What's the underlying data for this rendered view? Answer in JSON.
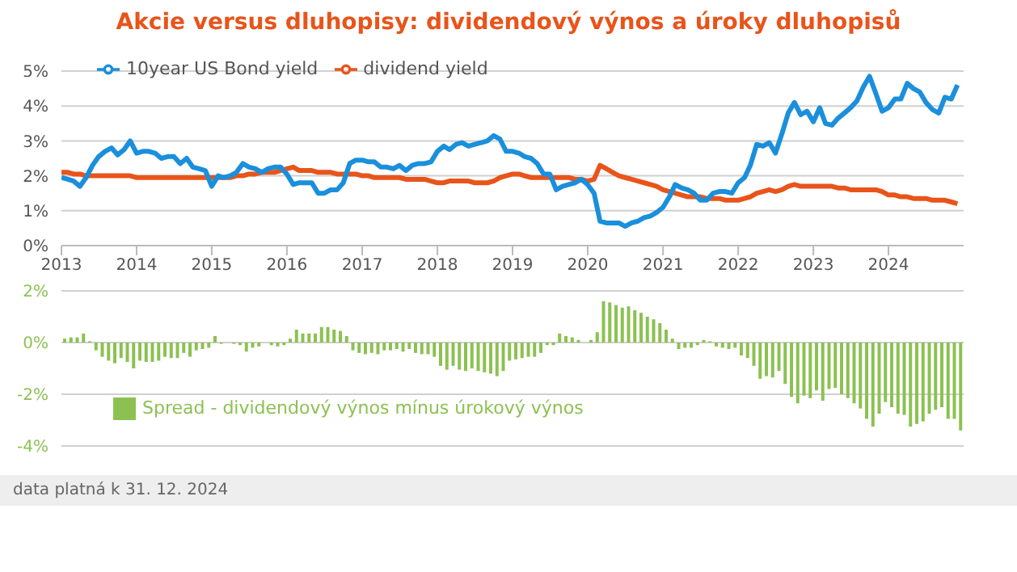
{
  "chart_data": [
    {
      "type": "line",
      "title": "Akcie versus dluhopisy: dividendový výnos a úroky dluhopisů",
      "x": [
        "2013-01",
        "2013-02",
        "2013-03",
        "2013-04",
        "2013-05",
        "2013-06",
        "2013-07",
        "2013-08",
        "2013-09",
        "2013-10",
        "2013-11",
        "2013-12",
        "2014-01",
        "2014-02",
        "2014-03",
        "2014-04",
        "2014-05",
        "2014-06",
        "2014-07",
        "2014-08",
        "2014-09",
        "2014-10",
        "2014-11",
        "2014-12",
        "2015-01",
        "2015-02",
        "2015-03",
        "2015-04",
        "2015-05",
        "2015-06",
        "2015-07",
        "2015-08",
        "2015-09",
        "2015-10",
        "2015-11",
        "2015-12",
        "2016-01",
        "2016-02",
        "2016-03",
        "2016-04",
        "2016-05",
        "2016-06",
        "2016-07",
        "2016-08",
        "2016-09",
        "2016-10",
        "2016-11",
        "2016-12",
        "2017-01",
        "2017-02",
        "2017-03",
        "2017-04",
        "2017-05",
        "2017-06",
        "2017-07",
        "2017-08",
        "2017-09",
        "2017-10",
        "2017-11",
        "2017-12",
        "2018-01",
        "2018-02",
        "2018-03",
        "2018-04",
        "2018-05",
        "2018-06",
        "2018-07",
        "2018-08",
        "2018-09",
        "2018-10",
        "2018-11",
        "2018-12",
        "2019-01",
        "2019-02",
        "2019-03",
        "2019-04",
        "2019-05",
        "2019-06",
        "2019-07",
        "2019-08",
        "2019-09",
        "2019-10",
        "2019-11",
        "2019-12",
        "2020-01",
        "2020-02",
        "2020-03",
        "2020-04",
        "2020-05",
        "2020-06",
        "2020-07",
        "2020-08",
        "2020-09",
        "2020-10",
        "2020-11",
        "2020-12",
        "2021-01",
        "2021-02",
        "2021-03",
        "2021-04",
        "2021-05",
        "2021-06",
        "2021-07",
        "2021-08",
        "2021-09",
        "2021-10",
        "2021-11",
        "2021-12",
        "2022-01",
        "2022-02",
        "2022-03",
        "2022-04",
        "2022-05",
        "2022-06",
        "2022-07",
        "2022-08",
        "2022-09",
        "2022-10",
        "2022-11",
        "2022-12",
        "2023-01",
        "2023-02",
        "2023-03",
        "2023-04",
        "2023-05",
        "2023-06",
        "2023-07",
        "2023-08",
        "2023-09",
        "2023-10",
        "2023-11",
        "2023-12",
        "2024-01",
        "2024-02",
        "2024-03",
        "2024-04",
        "2024-05",
        "2024-06",
        "2024-07",
        "2024-08",
        "2024-09",
        "2024-10",
        "2024-11",
        "2024-12"
      ],
      "series": [
        {
          "name": "dividend yield",
          "color": "#e8541a",
          "values": [
            2.1,
            2.1,
            2.05,
            2.05,
            2.0,
            2.0,
            2.0,
            2.0,
            2.0,
            2.0,
            2.0,
            2.0,
            1.95,
            1.95,
            1.95,
            1.95,
            1.95,
            1.95,
            1.95,
            1.95,
            1.95,
            1.95,
            1.95,
            1.95,
            1.95,
            1.95,
            1.95,
            1.95,
            2.0,
            2.0,
            2.05,
            2.05,
            2.1,
            2.1,
            2.1,
            2.15,
            2.2,
            2.25,
            2.15,
            2.15,
            2.15,
            2.1,
            2.1,
            2.1,
            2.05,
            2.05,
            2.05,
            2.05,
            2.0,
            2.0,
            1.95,
            1.95,
            1.95,
            1.95,
            1.95,
            1.9,
            1.9,
            1.9,
            1.9,
            1.85,
            1.8,
            1.8,
            1.85,
            1.85,
            1.85,
            1.85,
            1.8,
            1.8,
            1.8,
            1.85,
            1.95,
            2.0,
            2.05,
            2.05,
            2.0,
            1.95,
            1.95,
            1.95,
            1.95,
            1.95,
            1.95,
            1.95,
            1.9,
            1.9,
            1.85,
            1.9,
            2.3,
            2.2,
            2.1,
            2.0,
            1.95,
            1.9,
            1.85,
            1.8,
            1.75,
            1.7,
            1.6,
            1.55,
            1.5,
            1.45,
            1.4,
            1.4,
            1.4,
            1.35,
            1.35,
            1.35,
            1.3,
            1.3,
            1.3,
            1.35,
            1.4,
            1.5,
            1.55,
            1.6,
            1.55,
            1.6,
            1.7,
            1.75,
            1.7,
            1.7,
            1.7,
            1.7,
            1.7,
            1.7,
            1.65,
            1.65,
            1.6,
            1.6,
            1.6,
            1.6,
            1.6,
            1.55,
            1.45,
            1.45,
            1.4,
            1.4,
            1.35,
            1.35,
            1.35,
            1.3,
            1.3,
            1.3,
            1.25,
            1.2
          ]
        },
        {
          "name": "10year US Bond yield",
          "color": "#1a8fdc",
          "values": [
            1.95,
            1.9,
            1.85,
            1.7,
            1.95,
            2.3,
            2.55,
            2.7,
            2.8,
            2.6,
            2.75,
            3.0,
            2.65,
            2.7,
            2.7,
            2.65,
            2.5,
            2.55,
            2.55,
            2.35,
            2.5,
            2.25,
            2.2,
            2.15,
            1.7,
            2.0,
            1.95,
            2.0,
            2.1,
            2.35,
            2.25,
            2.2,
            2.1,
            2.2,
            2.25,
            2.25,
            2.05,
            1.75,
            1.8,
            1.8,
            1.8,
            1.5,
            1.5,
            1.6,
            1.6,
            1.8,
            2.35,
            2.45,
            2.45,
            2.4,
            2.4,
            2.25,
            2.25,
            2.2,
            2.3,
            2.15,
            2.3,
            2.35,
            2.35,
            2.4,
            2.7,
            2.85,
            2.75,
            2.9,
            2.95,
            2.85,
            2.9,
            2.95,
            3.0,
            3.15,
            3.05,
            2.7,
            2.7,
            2.65,
            2.55,
            2.5,
            2.35,
            2.05,
            2.05,
            1.6,
            1.7,
            1.75,
            1.8,
            1.9,
            1.75,
            1.5,
            0.7,
            0.65,
            0.65,
            0.65,
            0.55,
            0.65,
            0.7,
            0.8,
            0.85,
            0.95,
            1.1,
            1.4,
            1.75,
            1.65,
            1.6,
            1.5,
            1.3,
            1.3,
            1.5,
            1.55,
            1.55,
            1.5,
            1.8,
            1.95,
            2.3,
            2.9,
            2.85,
            2.95,
            2.65,
            3.2,
            3.8,
            4.1,
            3.75,
            3.85,
            3.55,
            3.95,
            3.5,
            3.45,
            3.65,
            3.8,
            3.95,
            4.15,
            4.55,
            4.85,
            4.35,
            3.85,
            3.95,
            4.2,
            4.2,
            4.65,
            4.5,
            4.4,
            4.1,
            3.9,
            3.8,
            4.25,
            4.2,
            4.6
          ]
        }
      ],
      "xlim": [
        "2013-01",
        "2024-12-31"
      ],
      "xticks": [
        "2013",
        "2014",
        "2015",
        "2016",
        "2017",
        "2018",
        "2019",
        "2020",
        "2021",
        "2022",
        "2023",
        "2024"
      ],
      "ylim": [
        0,
        5
      ],
      "yticks": [
        {
          "value": 0,
          "label": "0%"
        },
        {
          "value": 1,
          "label": "1%"
        },
        {
          "value": 2,
          "label": "2%"
        },
        {
          "value": 3,
          "label": "3%"
        },
        {
          "value": 4,
          "label": "4%"
        },
        {
          "value": 5,
          "label": "5%"
        }
      ],
      "grid": "y",
      "legend": "top",
      "marker": "none",
      "line_style": "solid"
    },
    {
      "type": "bar",
      "categories": [
        null,
        null,
        null,
        null,
        null,
        null,
        null,
        null,
        null,
        null,
        null,
        null,
        null,
        null,
        null,
        null,
        null,
        null,
        null,
        null,
        null,
        null,
        null,
        null,
        null,
        null,
        null,
        null,
        null,
        null,
        null,
        null,
        null,
        null,
        null,
        null,
        null,
        null,
        null,
        null,
        null,
        null,
        null,
        null,
        null,
        null,
        null,
        null,
        null,
        null,
        null,
        null,
        null,
        null,
        null,
        null,
        null,
        null,
        null,
        null,
        null,
        null,
        null,
        null,
        null,
        null,
        null,
        null,
        null,
        null,
        null,
        null,
        null,
        null,
        null,
        null,
        null,
        null,
        null,
        null,
        null,
        null,
        null,
        null,
        null,
        null,
        null,
        null,
        null,
        null,
        null,
        null,
        null,
        null,
        null,
        null,
        null,
        null,
        null,
        null,
        null,
        null,
        null,
        null,
        null,
        null,
        null,
        null,
        null,
        null,
        null,
        null,
        null,
        null,
        null,
        null,
        null,
        null,
        null,
        null,
        null,
        null,
        null,
        null,
        null,
        null,
        null,
        null,
        null,
        null,
        null,
        null,
        null,
        null,
        null,
        null,
        null,
        null,
        null,
        null,
        null,
        null,
        null,
        null
      ],
      "series": [
        {
          "name": "Spread - dividendový výnos mínus úrokový výnos",
          "color": "#8cc152",
          "values": [
            0.15,
            0.2,
            0.2,
            0.35,
            0.05,
            -0.3,
            -0.55,
            -0.7,
            -0.8,
            -0.6,
            -0.75,
            -1.0,
            -0.7,
            -0.75,
            -0.75,
            -0.7,
            -0.55,
            -0.6,
            -0.6,
            -0.4,
            -0.55,
            -0.3,
            -0.25,
            -0.2,
            0.25,
            -0.05,
            0,
            -0.05,
            -0.1,
            -0.35,
            -0.2,
            -0.15,
            0,
            -0.1,
            -0.15,
            -0.1,
            0.15,
            0.5,
            0.35,
            0.35,
            0.35,
            0.6,
            0.6,
            0.5,
            0.45,
            0.25,
            -0.3,
            -0.4,
            -0.45,
            -0.4,
            -0.45,
            -0.3,
            -0.3,
            -0.25,
            -0.35,
            -0.25,
            -0.4,
            -0.45,
            -0.45,
            -0.55,
            -0.9,
            -1.05,
            -0.9,
            -1.05,
            -1.1,
            -1.0,
            -1.1,
            -1.15,
            -1.2,
            -1.3,
            -1.1,
            -0.7,
            -0.65,
            -0.6,
            -0.55,
            -0.55,
            -0.4,
            -0.1,
            -0.1,
            0.35,
            0.25,
            0.2,
            0.1,
            0,
            0.1,
            0.4,
            1.6,
            1.55,
            1.45,
            1.35,
            1.4,
            1.25,
            1.15,
            1.0,
            0.9,
            0.75,
            0.5,
            0.15,
            -0.25,
            -0.2,
            -0.2,
            -0.1,
            0.1,
            0.05,
            -0.15,
            -0.2,
            -0.25,
            -0.2,
            -0.5,
            -0.6,
            -0.9,
            -1.4,
            -1.3,
            -1.35,
            -1.1,
            -1.6,
            -2.1,
            -2.35,
            -2.05,
            -2.15,
            -1.85,
            -2.25,
            -1.8,
            -1.75,
            -2.0,
            -2.15,
            -2.35,
            -2.55,
            -2.95,
            -3.25,
            -2.75,
            -2.3,
            -2.5,
            -2.75,
            -2.8,
            -3.25,
            -3.15,
            -3.05,
            -2.75,
            -2.6,
            -2.5,
            -2.95,
            -2.95,
            -3.4
          ]
        }
      ],
      "ylim": [
        -4,
        2
      ],
      "yticks": [
        {
          "value": -4,
          "label": "-4%"
        },
        {
          "value": -2,
          "label": "-2%"
        },
        {
          "value": 0,
          "label": "0%"
        },
        {
          "value": 2,
          "label": "2%"
        }
      ],
      "grid": "y",
      "legend": "bottom",
      "tick_labels": "y",
      "annotations": [
        "data platná k 31. 12. 2024"
      ]
    }
  ]
}
